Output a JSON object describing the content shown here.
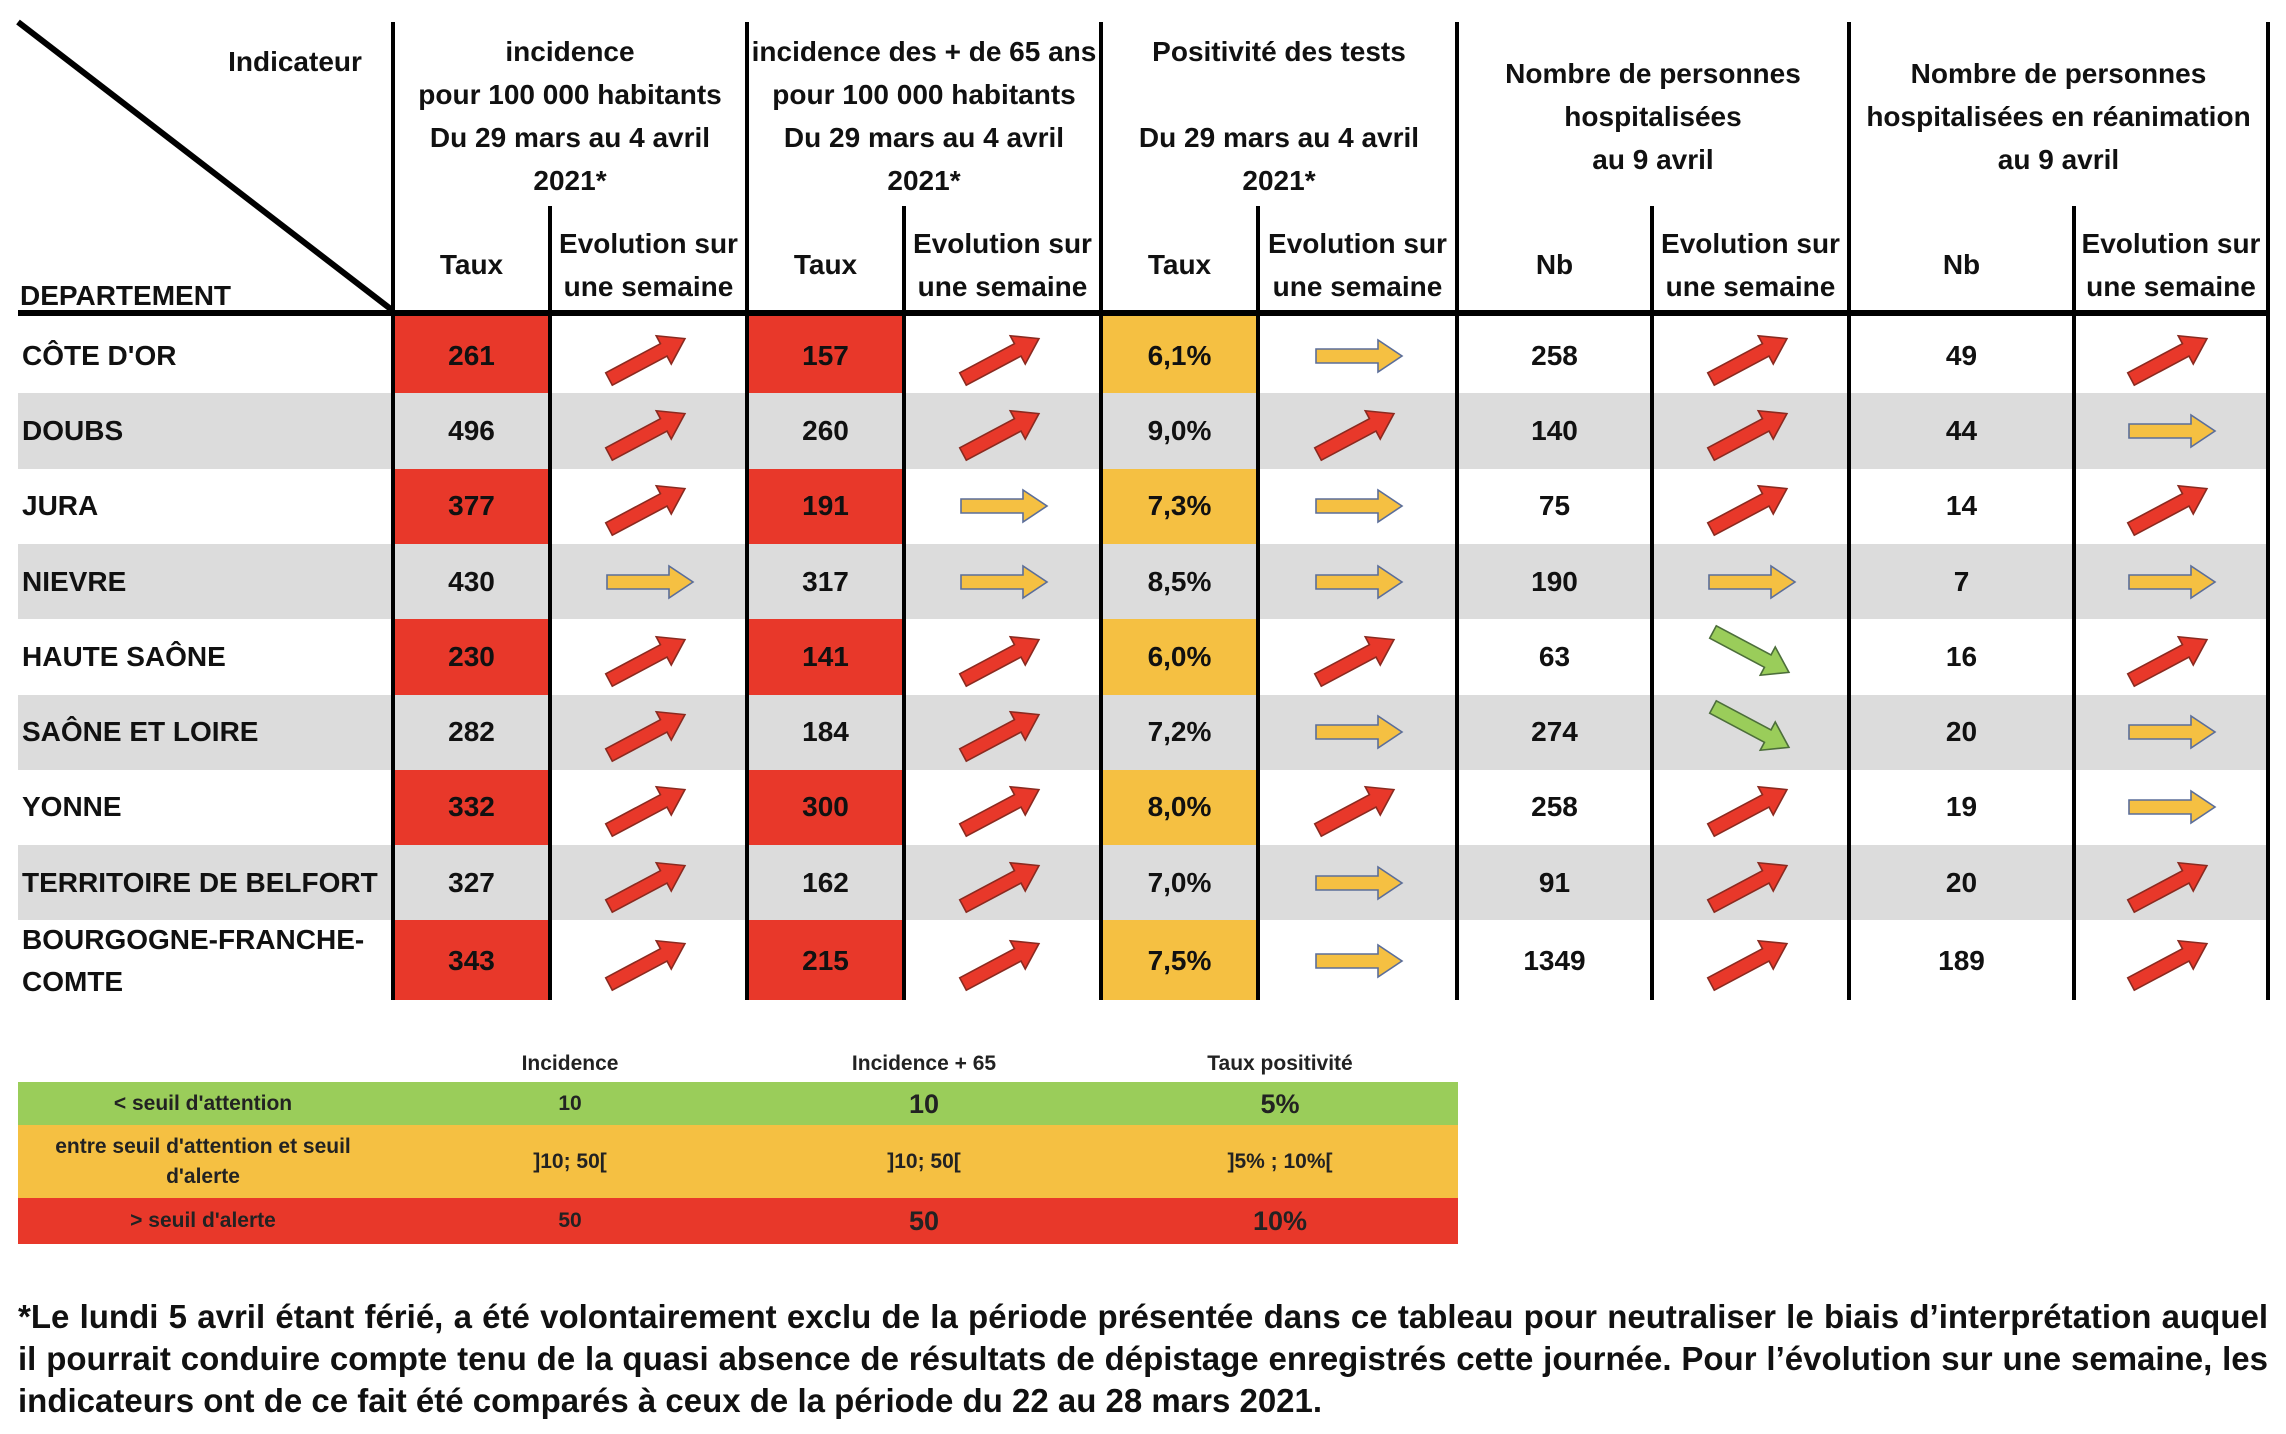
{
  "header": {
    "indicateur": "Indicateur",
    "departement": "DEPARTEMENT",
    "groups": [
      {
        "lines": [
          "incidence",
          "pour 100 000 habitants",
          "Du 29 mars au 4 avril",
          "2021*"
        ],
        "col1": "Taux",
        "col2": [
          "Evolution sur",
          "une semaine"
        ]
      },
      {
        "lines": [
          "incidence des + de 65 ans",
          "pour 100 000 habitants",
          "Du 29 mars au 4 avril",
          "2021*"
        ],
        "col1": "Taux",
        "col2": [
          "Evolution sur",
          "une semaine"
        ]
      },
      {
        "lines": [
          "Positivité des tests",
          "",
          "Du 29 mars au 4 avril",
          "2021*"
        ],
        "col1": "Taux",
        "col2": [
          "Evolution sur",
          "une semaine"
        ]
      },
      {
        "lines": [
          "Nombre de personnes",
          "hospitalisées",
          "au 9 avril"
        ],
        "col1": "Nb",
        "col2": [
          "Evolution sur",
          "une semaine"
        ]
      },
      {
        "lines": [
          "Nombre de personnes",
          "hospitalisées en réanimation",
          "au 9 avril"
        ],
        "col1": "Nb",
        "col2": [
          "Evolution sur",
          "une semaine"
        ]
      }
    ]
  },
  "arrow_types": {
    "up": "red-up-arrow",
    "flat": "orange-right-arrow",
    "down": "green-down-arrow"
  },
  "colors": {
    "red": "#e8382a",
    "orange": "#f5c042",
    "green": "#9acd5a",
    "gray_row": "#dcdcdc"
  },
  "rows": [
    {
      "dept": [
        "CÔTE D'OR"
      ],
      "inc": "261",
      "inc_evo": "up",
      "inc65": "157",
      "inc65_evo": "up",
      "pos": "6,1%",
      "pos_evo": "flat",
      "hosp": "258",
      "hosp_evo": "up",
      "rea": "49",
      "rea_evo": "up"
    },
    {
      "dept": [
        "DOUBS"
      ],
      "inc": "496",
      "inc_evo": "up",
      "inc65": "260",
      "inc65_evo": "up",
      "pos": "9,0%",
      "pos_evo": "up",
      "hosp": "140",
      "hosp_evo": "up",
      "rea": "44",
      "rea_evo": "flat"
    },
    {
      "dept": [
        "JURA"
      ],
      "inc": "377",
      "inc_evo": "up",
      "inc65": "191",
      "inc65_evo": "flat",
      "pos": "7,3%",
      "pos_evo": "flat",
      "hosp": "75",
      "hosp_evo": "up",
      "rea": "14",
      "rea_evo": "up"
    },
    {
      "dept": [
        "NIEVRE"
      ],
      "inc": "430",
      "inc_evo": "flat",
      "inc65": "317",
      "inc65_evo": "flat",
      "pos": "8,5%",
      "pos_evo": "flat",
      "hosp": "190",
      "hosp_evo": "flat",
      "rea": "7",
      "rea_evo": "flat"
    },
    {
      "dept": [
        "HAUTE SAÔNE"
      ],
      "inc": "230",
      "inc_evo": "up",
      "inc65": "141",
      "inc65_evo": "up",
      "pos": "6,0%",
      "pos_evo": "up",
      "hosp": "63",
      "hosp_evo": "down",
      "rea": "16",
      "rea_evo": "up"
    },
    {
      "dept": [
        "SAÔNE ET LOIRE"
      ],
      "inc": "282",
      "inc_evo": "up",
      "inc65": "184",
      "inc65_evo": "up",
      "pos": "7,2%",
      "pos_evo": "flat",
      "hosp": "274",
      "hosp_evo": "down",
      "rea": "20",
      "rea_evo": "flat"
    },
    {
      "dept": [
        "YONNE"
      ],
      "inc": "332",
      "inc_evo": "up",
      "inc65": "300",
      "inc65_evo": "up",
      "pos": "8,0%",
      "pos_evo": "up",
      "hosp": "258",
      "hosp_evo": "up",
      "rea": "19",
      "rea_evo": "flat"
    },
    {
      "dept": [
        "TERRITOIRE DE BELFORT"
      ],
      "inc": "327",
      "inc_evo": "up",
      "inc65": "162",
      "inc65_evo": "up",
      "pos": "7,0%",
      "pos_evo": "flat",
      "hosp": "91",
      "hosp_evo": "up",
      "rea": "20",
      "rea_evo": "up"
    },
    {
      "dept": [
        "BOURGOGNE-FRANCHE-",
        "COMTE"
      ],
      "inc": "343",
      "inc_evo": "up",
      "inc65": "215",
      "inc65_evo": "up",
      "pos": "7,5%",
      "pos_evo": "flat",
      "hosp": "1349",
      "hosp_evo": "up",
      "rea": "189",
      "rea_evo": "up"
    }
  ],
  "legend": {
    "headers": [
      "Incidence",
      "Incidence + 65",
      "Taux positivité"
    ],
    "rows": [
      {
        "label": [
          "< seuil d'attention"
        ],
        "inc": "10",
        "inc65": "10",
        "pos": "5%",
        "color": "#9acd5a"
      },
      {
        "label": [
          "entre seuil d'attention et seuil",
          "d'alerte"
        ],
        "inc": "]10; 50[",
        "inc65": "]10; 50[",
        "pos": "]5% ; 10%[",
        "color": "#f5c042"
      },
      {
        "label": [
          "> seuil d'alerte"
        ],
        "inc": "50",
        "inc65": "50",
        "pos": "10%",
        "color": "#e8382a"
      }
    ]
  },
  "footnote": "*Le lundi 5 avril étant férié, a été volontairement exclu de la période présentée dans ce tableau pour neutraliser le biais d’interprétation auquel il pourrait conduire compte tenu de la quasi absence de résultats de dépistage enregistrés cette journée. Pour l’évolution sur une semaine, les indicateurs ont de ce fait été comparés à ceux de la période du 22 au 28 mars 2021."
}
